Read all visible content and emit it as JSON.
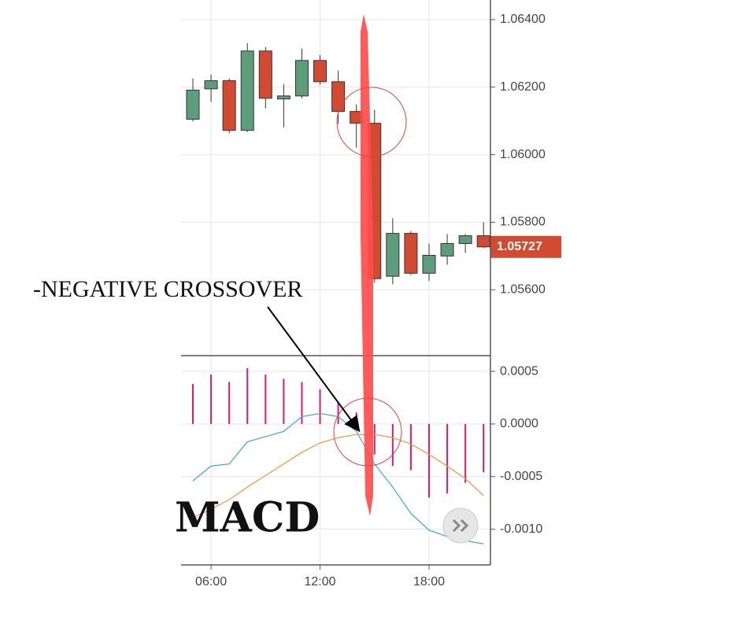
{
  "chart_data": [
    {
      "type": "candlestick",
      "annotations": [
        "-NEGATIVE CROSSOVER"
      ],
      "x": [
        5,
        6,
        7,
        8,
        9,
        10,
        11,
        12,
        13,
        14,
        15,
        16,
        17,
        18,
        19,
        20,
        21
      ],
      "open": [
        1.06105,
        1.06195,
        1.06219,
        1.06072,
        1.06307,
        1.06165,
        1.06174,
        1.06279,
        1.06216,
        1.06128,
        1.06093,
        1.0564,
        1.05767,
        1.05649,
        1.057,
        1.05737,
        1.0576
      ],
      "high": [
        1.06226,
        1.06237,
        1.06226,
        1.0633,
        1.06319,
        1.06209,
        1.06314,
        1.06295,
        1.06249,
        1.06149,
        1.06133,
        1.05812,
        1.05774,
        1.05737,
        1.05765,
        1.05765,
        1.058
      ],
      "low": [
        1.06098,
        1.06156,
        1.06063,
        1.06067,
        1.06137,
        1.06081,
        1.06167,
        1.06207,
        1.06091,
        1.06021,
        1.05621,
        1.05616,
        1.05644,
        1.05626,
        1.05674,
        1.05709,
        1.05723
      ],
      "close": [
        1.06191,
        1.06219,
        1.06072,
        1.06307,
        1.06167,
        1.06174,
        1.06279,
        1.06216,
        1.06128,
        1.06093,
        1.05633,
        1.05767,
        1.05649,
        1.05702,
        1.05737,
        1.0576,
        1.05727
      ],
      "up_color": "#5c9e7a",
      "down_color": "#d24a30",
      "last_price_label": "1.05727",
      "xlim": [
        4.35,
        21.38
      ],
      "xticks": [
        6,
        12,
        18
      ],
      "ylim": [
        1.05405,
        1.06458
      ],
      "yticks": [
        {
          "value": 1.064,
          "label": "1.06400"
        },
        {
          "value": 1.062,
          "label": "1.06200"
        },
        {
          "value": 1.06,
          "label": "1.06000"
        },
        {
          "value": 1.058,
          "label": "1.05800"
        },
        {
          "value": 1.056,
          "label": "1.05600"
        }
      ],
      "grid": true
    },
    {
      "type": "macd",
      "title": "MACD",
      "x": [
        5,
        6,
        7,
        8,
        9,
        10,
        11,
        12,
        13,
        14,
        15,
        16,
        17,
        18,
        19,
        20,
        21
      ],
      "series": [
        {
          "type": "bar",
          "color": "#e0196a",
          "values": [
            0.00038,
            0.00047,
            0.0004,
            0.00053,
            0.00047,
            0.00043,
            0.0004,
            0.00033,
            0.0002,
            0.00011,
            -0.00029,
            -0.0004,
            -0.00044,
            -0.0007,
            -0.00066,
            -0.00056,
            -0.00046
          ]
        },
        {
          "type": "line",
          "color": "#45a8e6",
          "values": [
            -0.00054,
            -0.0004,
            -0.00038,
            -0.00017,
            -0.00012,
            -7e-05,
            7e-05,
            0.0001,
            7e-05,
            -7e-05,
            -0.00038,
            -0.0006,
            -0.00085,
            -0.00101,
            -0.00107,
            -0.00111,
            -0.00114
          ]
        },
        {
          "type": "line",
          "color": "#f39a3c",
          "values": [
            -0.00089,
            -0.00081,
            -0.00072,
            -0.0006,
            -0.00049,
            -0.00038,
            -0.00027,
            -0.00018,
            -0.00013,
            -0.0001,
            -0.0001,
            -0.00013,
            -0.00019,
            -0.00029,
            -0.0004,
            -0.00052,
            -0.00068
          ]
        }
      ],
      "xlim": [
        4.35,
        21.38
      ],
      "xticks": [
        {
          "value": 6,
          "label": "06:00"
        },
        {
          "value": 12,
          "label": "12:00"
        },
        {
          "value": 18,
          "label": "18:00"
        }
      ],
      "ylim": [
        -0.00134,
        0.00065
      ],
      "yticks": [
        0.0005,
        {
          "value": 0,
          "label": "0.0000"
        },
        -0.0005,
        {
          "value": -0.001,
          "label": "-0.0010"
        }
      ],
      "grid": true
    }
  ]
}
